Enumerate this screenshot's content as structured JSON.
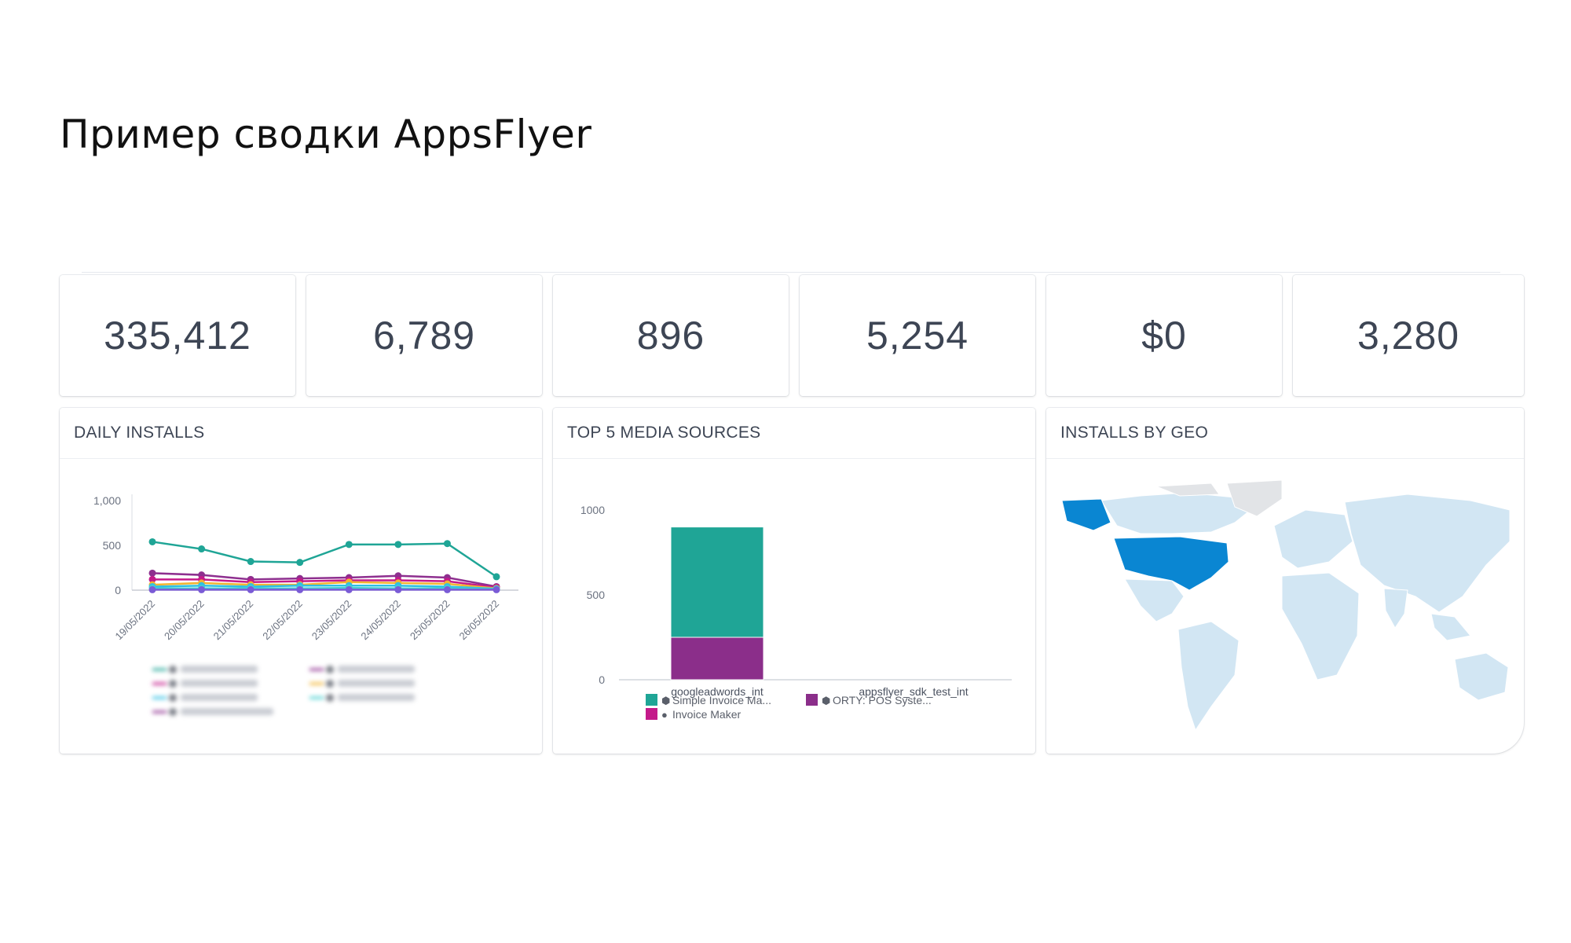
{
  "slide": {
    "title": "Пример сводки AppsFlyer"
  },
  "kpis": [
    "335,412",
    "6,789",
    "896",
    "5,254",
    "$0",
    "3,280"
  ],
  "panels": {
    "daily_installs": "DAILY INSTALLS",
    "media_sources": "TOP 5 MEDIA SOURCES",
    "geo": "INSTALLS BY GEO"
  },
  "chart_data": [
    {
      "type": "line",
      "title": "DAILY INSTALLS",
      "x": [
        "19/05/2022",
        "20/05/2022",
        "21/05/2022",
        "22/05/2022",
        "23/05/2022",
        "24/05/2022",
        "25/05/2022",
        "26/05/2022"
      ],
      "ylim": [
        0,
        1000
      ],
      "yticks": [
        "1,000",
        "500",
        "0"
      ],
      "series": [
        {
          "color": "#1fa596",
          "values": [
            540,
            460,
            320,
            310,
            510,
            510,
            520,
            150
          ]
        },
        {
          "color": "#8e2f8f",
          "values": [
            190,
            170,
            120,
            130,
            140,
            160,
            140,
            40
          ]
        },
        {
          "color": "#c41a8a",
          "values": [
            120,
            120,
            90,
            100,
            110,
            110,
            100,
            30
          ]
        },
        {
          "color": "#f2b431",
          "values": [
            60,
            80,
            60,
            60,
            90,
            80,
            70,
            20
          ]
        },
        {
          "color": "#2fc0e4",
          "values": [
            40,
            50,
            40,
            50,
            50,
            50,
            40,
            15
          ]
        },
        {
          "color": "#46cfd0",
          "values": [
            20,
            20,
            20,
            20,
            25,
            20,
            20,
            10
          ]
        },
        {
          "color": "#7a5bd6",
          "values": [
            5,
            5,
            5,
            5,
            5,
            5,
            5,
            5
          ]
        }
      ]
    },
    {
      "type": "bar",
      "title": "TOP 5 MEDIA SOURCES",
      "categories": [
        "googleadwords_int",
        "appsflyer_sdk_test_int"
      ],
      "ylim": [
        0,
        1000
      ],
      "yticks": [
        "1000",
        "500",
        "0"
      ],
      "series": [
        {
          "name": "ORTY: POS Syste...",
          "color": "#8b2e8a",
          "values": [
            250,
            0
          ]
        },
        {
          "name": "Simple Invoice Ma...",
          "color": "#1fa596",
          "values": [
            650,
            0
          ]
        },
        {
          "name": "Invoice Maker",
          "color": "#c41a8a",
          "values": [
            0,
            0
          ]
        }
      ],
      "legend": [
        {
          "label": "Simple Invoice Ma...",
          "color": "#1fa596",
          "icon": "android-icon"
        },
        {
          "label": "ORTY: POS Syste...",
          "color": "#8b2e8a",
          "icon": "android-icon"
        },
        {
          "label": "Invoice Maker",
          "color": "#c41a8a",
          "icon": "apple-icon"
        }
      ]
    }
  ]
}
